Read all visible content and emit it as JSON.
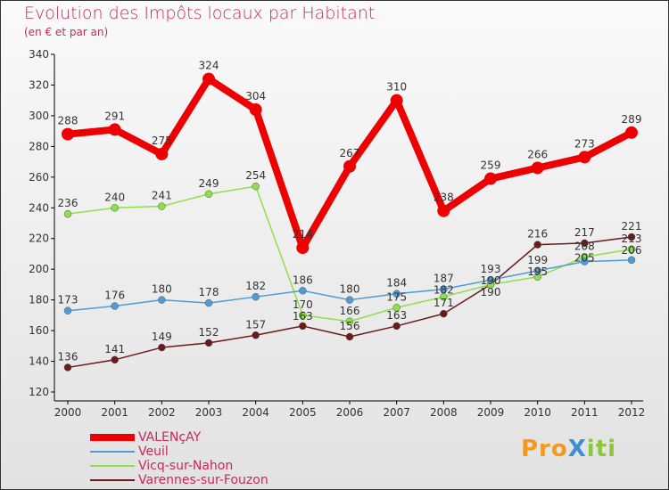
{
  "chart_data": {
    "type": "line",
    "title": "Evolution des Impôts locaux par Habitant",
    "subtitle": "(en € et par an)",
    "x": [
      "2000",
      "2001",
      "2002",
      "2003",
      "2004",
      "2005",
      "2006",
      "2007",
      "2008",
      "2009",
      "2010",
      "2011",
      "2012"
    ],
    "ylim": [
      120,
      340
    ],
    "yticks": [
      120,
      140,
      160,
      180,
      200,
      220,
      240,
      260,
      280,
      300,
      320,
      340
    ],
    "grid": false,
    "legend_position": "bottom-left",
    "series": [
      {
        "name": "VALENçAY",
        "color": "#ee0000",
        "width": 8,
        "values": [
          288,
          291,
          275,
          324,
          304,
          214,
          267,
          310,
          238,
          259,
          266,
          273,
          289
        ]
      },
      {
        "name": "Veuil",
        "color": "#4f9bd6",
        "width": 1.5,
        "values": [
          173,
          176,
          180,
          178,
          182,
          186,
          180,
          184,
          187,
          193,
          199,
          205,
          206
        ]
      },
      {
        "name": "Vicq-sur-Nahon",
        "color": "#8ee04a",
        "width": 1.5,
        "values": [
          236,
          240,
          241,
          249,
          254,
          170,
          166,
          175,
          182,
          190,
          195,
          208,
          213
        ]
      },
      {
        "name": "Varennes-sur-Fouzon",
        "color": "#6b1a1a",
        "width": 1.5,
        "values": [
          136,
          141,
          149,
          152,
          157,
          163,
          156,
          163,
          171,
          190,
          216,
          217,
          221
        ]
      }
    ]
  },
  "logo": "ProXiti"
}
